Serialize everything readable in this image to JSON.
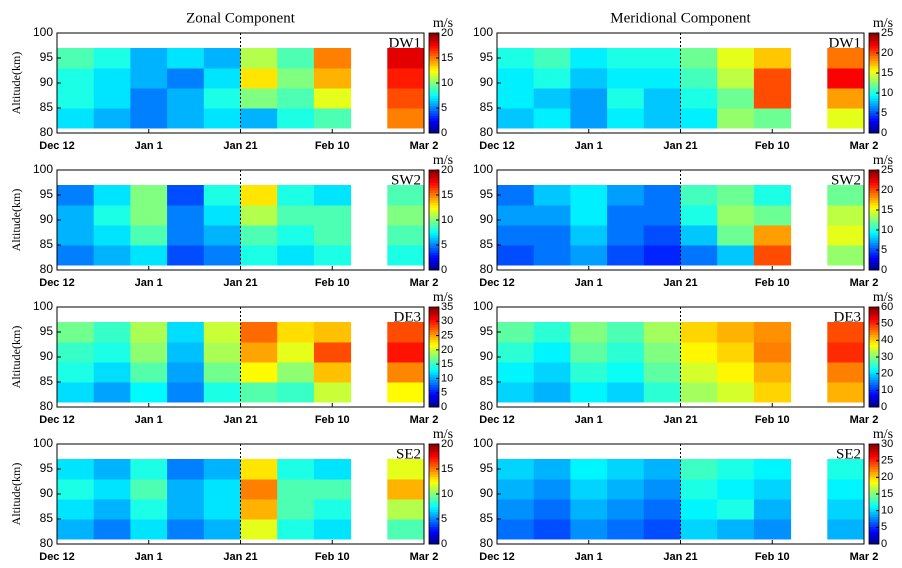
{
  "chart_data": [
    {
      "type": "heatmap",
      "title": "Zonal Component",
      "label": "DW1",
      "ylabel": "Altitude(km)",
      "colormap": "jet",
      "xlim": [
        0,
        80
      ],
      "xticks": [
        {
          "value": 0,
          "label": "Dec 12"
        },
        {
          "value": 20,
          "label": "Jan 1"
        },
        {
          "value": 40,
          "label": "Jan 21"
        },
        {
          "value": 60,
          "label": "Feb 10"
        },
        {
          "value": 80,
          "label": "Mar 2"
        }
      ],
      "ylim": [
        80,
        100
      ],
      "yticks": [
        80,
        85,
        90,
        95,
        100
      ],
      "vline": 40,
      "x": [
        4,
        12,
        20,
        28,
        36,
        44,
        52,
        60,
        68,
        76
      ],
      "y": [
        83,
        87,
        91,
        95
      ],
      "z": [
        [
          7,
          6,
          5,
          6,
          7,
          6,
          8,
          9,
          null,
          15
        ],
        [
          8,
          7,
          5,
          6,
          8,
          10,
          9,
          12,
          null,
          16
        ],
        [
          8,
          7,
          6,
          5,
          7,
          13,
          10,
          14,
          null,
          17
        ],
        [
          9,
          8,
          6,
          7,
          6,
          11,
          9,
          15,
          null,
          18
        ]
      ],
      "colorbar": {
        "label": "m/s",
        "lim": [
          0,
          20
        ],
        "ticks": [
          0,
          5,
          10,
          15,
          20
        ]
      }
    },
    {
      "type": "heatmap",
      "title": "Meridional Component",
      "label": "DW1",
      "colormap": "jet",
      "xlim": [
        0,
        80
      ],
      "xticks": [
        {
          "value": 0,
          "label": "Dec 12"
        },
        {
          "value": 20,
          "label": "Jan 1"
        },
        {
          "value": 40,
          "label": "Jan 21"
        },
        {
          "value": 60,
          "label": "Feb 10"
        },
        {
          "value": 80,
          "label": "Mar 2"
        }
      ],
      "ylim": [
        80,
        100
      ],
      "yticks": [
        80,
        85,
        90,
        95,
        100
      ],
      "vline": 40,
      "x": [
        4,
        12,
        20,
        28,
        36,
        44,
        52,
        60,
        68,
        76
      ],
      "y": [
        83,
        87,
        91,
        95
      ],
      "z": [
        [
          8,
          9,
          7,
          9,
          8,
          9,
          13,
          12,
          null,
          15
        ],
        [
          9,
          8,
          7,
          10,
          8,
          10,
          12,
          20,
          null,
          18
        ],
        [
          9,
          10,
          8,
          9,
          9,
          11,
          14,
          20,
          null,
          22
        ],
        [
          10,
          11,
          9,
          10,
          10,
          12,
          15,
          17,
          null,
          19
        ]
      ],
      "colorbar": {
        "label": "m/s",
        "lim": [
          0,
          25
        ],
        "ticks": [
          0,
          5,
          10,
          15,
          20,
          25
        ]
      }
    },
    {
      "type": "heatmap",
      "label": "SW2",
      "ylabel": "Altitude(km)",
      "colormap": "jet",
      "xlim": [
        0,
        80
      ],
      "xticks": [
        {
          "value": 0,
          "label": "Dec 12"
        },
        {
          "value": 20,
          "label": "Jan 1"
        },
        {
          "value": 40,
          "label": "Jan 21"
        },
        {
          "value": 60,
          "label": "Feb 10"
        },
        {
          "value": 80,
          "label": "Mar 2"
        }
      ],
      "ylim": [
        80,
        100
      ],
      "yticks": [
        80,
        85,
        90,
        95,
        100
      ],
      "vline": 40,
      "x": [
        4,
        12,
        20,
        28,
        36,
        44,
        52,
        60,
        68,
        76
      ],
      "y": [
        83,
        87,
        91,
        95
      ],
      "z": [
        [
          5,
          6,
          7,
          4,
          5,
          8,
          7,
          8,
          null,
          8
        ],
        [
          6,
          7,
          9,
          5,
          6,
          9,
          8,
          9,
          null,
          9
        ],
        [
          6,
          8,
          10,
          5,
          7,
          11,
          9,
          9,
          null,
          10
        ],
        [
          5,
          7,
          10,
          4,
          8,
          13,
          8,
          7,
          null,
          9
        ]
      ],
      "colorbar": {
        "label": "m/s",
        "lim": [
          0,
          20
        ],
        "ticks": [
          0,
          5,
          10,
          15,
          20
        ]
      }
    },
    {
      "type": "heatmap",
      "label": "SW2",
      "colormap": "jet",
      "xlim": [
        0,
        80
      ],
      "xticks": [
        {
          "value": 0,
          "label": "Dec 12"
        },
        {
          "value": 20,
          "label": "Jan 1"
        },
        {
          "value": 40,
          "label": "Jan 21"
        },
        {
          "value": 60,
          "label": "Feb 10"
        },
        {
          "value": 80,
          "label": "Mar 2"
        }
      ],
      "ylim": [
        80,
        100
      ],
      "yticks": [
        80,
        85,
        90,
        95,
        100
      ],
      "vline": 40,
      "x": [
        4,
        12,
        20,
        28,
        36,
        44,
        52,
        60,
        68,
        76
      ],
      "y": [
        83,
        87,
        91,
        95
      ],
      "z": [
        [
          5,
          6,
          7,
          5,
          4,
          6,
          8,
          20,
          null,
          13
        ],
        [
          6,
          6,
          8,
          6,
          5,
          8,
          12,
          18,
          null,
          15
        ],
        [
          7,
          7,
          9,
          6,
          6,
          10,
          13,
          12,
          null,
          14
        ],
        [
          6,
          8,
          9,
          7,
          6,
          11,
          12,
          10,
          null,
          12
        ]
      ],
      "colorbar": {
        "label": "m/s",
        "lim": [
          0,
          25
        ],
        "ticks": [
          0,
          5,
          10,
          15,
          20,
          25
        ]
      }
    },
    {
      "type": "heatmap",
      "label": "DE3",
      "ylabel": "Altitude(km)",
      "colormap": "jet",
      "xlim": [
        0,
        80
      ],
      "xticks": [
        {
          "value": 0,
          "label": "Dec 12"
        },
        {
          "value": 20,
          "label": "Jan 1"
        },
        {
          "value": 40,
          "label": "Jan 21"
        },
        {
          "value": 60,
          "label": "Feb 10"
        },
        {
          "value": 80,
          "label": "Mar 2"
        }
      ],
      "ylim": [
        80,
        100
      ],
      "yticks": [
        80,
        85,
        90,
        95,
        100
      ],
      "vline": 40,
      "x": [
        4,
        12,
        20,
        28,
        36,
        44,
        52,
        60,
        68,
        76
      ],
      "y": [
        83,
        87,
        91,
        95
      ],
      "z": [
        [
          12,
          10,
          13,
          9,
          14,
          16,
          15,
          20,
          null,
          22
        ],
        [
          14,
          12,
          16,
          10,
          17,
          22,
          18,
          24,
          null,
          26
        ],
        [
          15,
          14,
          18,
          11,
          19,
          25,
          21,
          28,
          null,
          30
        ],
        [
          17,
          15,
          19,
          12,
          20,
          27,
          23,
          24,
          null,
          28
        ]
      ],
      "colorbar": {
        "label": "m/s",
        "lim": [
          0,
          35
        ],
        "ticks": [
          0,
          5,
          10,
          15,
          20,
          25,
          30,
          35
        ]
      }
    },
    {
      "type": "heatmap",
      "label": "DE3",
      "colormap": "jet",
      "xlim": [
        0,
        80
      ],
      "xticks": [
        {
          "value": 0,
          "label": "Dec 12"
        },
        {
          "value": 20,
          "label": "Jan 1"
        },
        {
          "value": 40,
          "label": "Jan 21"
        },
        {
          "value": 60,
          "label": "Feb 10"
        },
        {
          "value": 80,
          "label": "Mar 2"
        }
      ],
      "ylim": [
        80,
        100
      ],
      "yticks": [
        80,
        85,
        90,
        95,
        100
      ],
      "vline": 40,
      "x": [
        4,
        12,
        20,
        28,
        36,
        44,
        52,
        60,
        68,
        76
      ],
      "y": [
        83,
        87,
        91,
        95
      ],
      "z": [
        [
          20,
          18,
          22,
          20,
          25,
          32,
          35,
          40,
          null,
          42
        ],
        [
          22,
          20,
          25,
          23,
          28,
          35,
          38,
          42,
          null,
          45
        ],
        [
          25,
          22,
          28,
          25,
          30,
          38,
          40,
          45,
          null,
          50
        ],
        [
          28,
          25,
          30,
          27,
          32,
          40,
          42,
          44,
          null,
          48
        ]
      ],
      "colorbar": {
        "label": "m/s",
        "lim": [
          0,
          60
        ],
        "ticks": [
          0,
          10,
          20,
          30,
          40,
          50,
          60
        ]
      }
    },
    {
      "type": "heatmap",
      "label": "SE2",
      "ylabel": "Altitude(km)",
      "colormap": "jet",
      "xlim": [
        0,
        80
      ],
      "xticks": [
        {
          "value": 0,
          "label": "Dec 12"
        },
        {
          "value": 20,
          "label": "Jan 1"
        },
        {
          "value": 40,
          "label": "Jan 21"
        },
        {
          "value": 60,
          "label": "Feb 10"
        },
        {
          "value": 80,
          "label": "Mar 2"
        }
      ],
      "ylim": [
        80,
        100
      ],
      "yticks": [
        80,
        85,
        90,
        95,
        100
      ],
      "vline": 40,
      "x": [
        4,
        12,
        20,
        28,
        36,
        44,
        52,
        60,
        68,
        76
      ],
      "y": [
        83,
        87,
        91,
        95
      ],
      "z": [
        [
          6,
          5,
          7,
          5,
          6,
          12,
          8,
          7,
          null,
          9
        ],
        [
          7,
          6,
          8,
          6,
          7,
          14,
          9,
          8,
          null,
          11
        ],
        [
          8,
          7,
          9,
          6,
          7,
          15,
          9,
          9,
          null,
          14
        ],
        [
          7,
          6,
          8,
          5,
          6,
          13,
          8,
          7,
          null,
          12
        ]
      ],
      "colorbar": {
        "label": "m/s",
        "lim": [
          0,
          20
        ],
        "ticks": [
          0,
          5,
          10,
          15,
          20
        ]
      }
    },
    {
      "type": "heatmap",
      "label": "SE2",
      "colormap": "jet",
      "xlim": [
        0,
        80
      ],
      "xticks": [
        {
          "value": 0,
          "label": "Dec 12"
        },
        {
          "value": 20,
          "label": "Jan 1"
        },
        {
          "value": 40,
          "label": "Jan 21"
        },
        {
          "value": 60,
          "label": "Feb 10"
        },
        {
          "value": 80,
          "label": "Mar 2"
        }
      ],
      "ylim": [
        80,
        100
      ],
      "yticks": [
        80,
        85,
        90,
        95,
        100
      ],
      "vline": 40,
      "x": [
        4,
        12,
        20,
        28,
        36,
        44,
        52,
        60,
        68,
        76
      ],
      "y": [
        83,
        87,
        91,
        95
      ],
      "z": [
        [
          7,
          6,
          8,
          7,
          6,
          10,
          9,
          8,
          null,
          9
        ],
        [
          8,
          7,
          9,
          8,
          7,
          11,
          12,
          9,
          null,
          10
        ],
        [
          9,
          8,
          10,
          9,
          8,
          12,
          11,
          10,
          null,
          11
        ],
        [
          10,
          9,
          11,
          10,
          9,
          13,
          12,
          11,
          null,
          12
        ]
      ],
      "colorbar": {
        "label": "m/s",
        "lim": [
          0,
          30
        ],
        "ticks": [
          0,
          5,
          10,
          15,
          20,
          25,
          30
        ]
      }
    }
  ]
}
